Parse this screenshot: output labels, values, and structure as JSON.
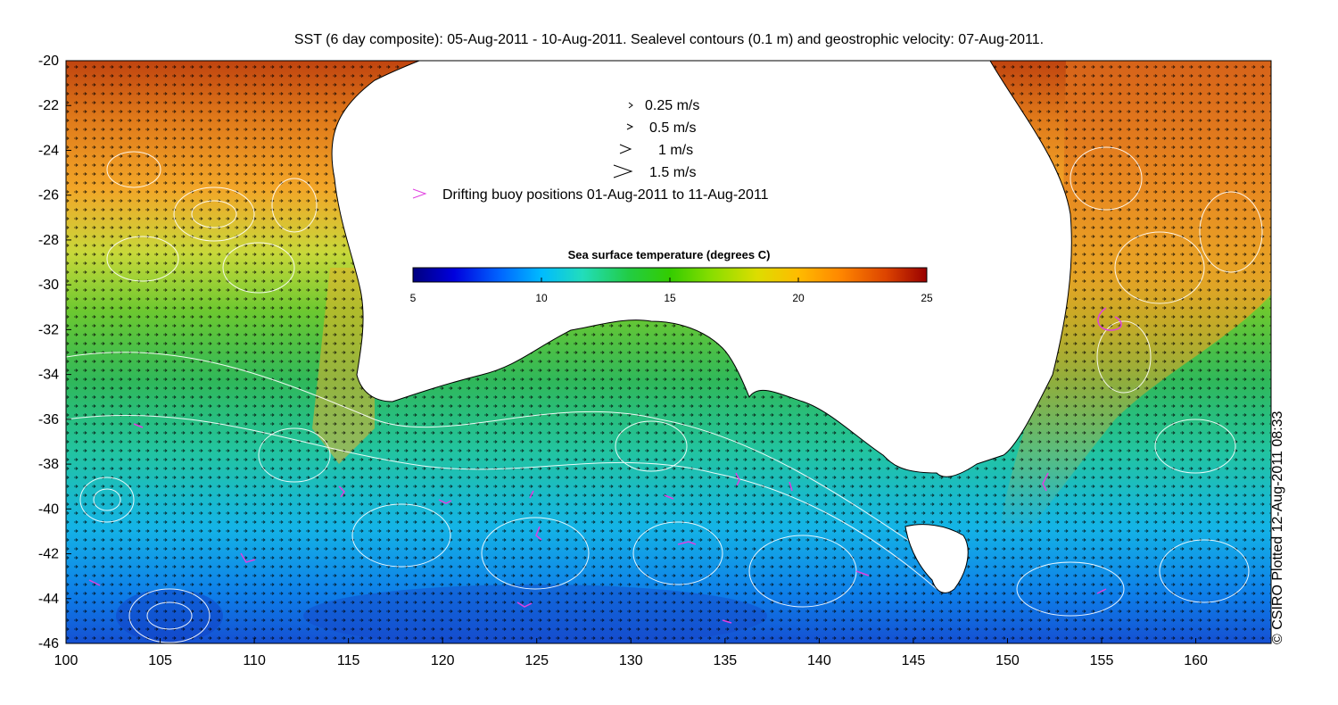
{
  "title": "SST (6 day composite): 05-Aug-2011 - 10-Aug-2011. Sealevel contours (0.1 m) and geostrophic velocity: 07-Aug-2011.",
  "credit": "© CSIRO Plotted 12-Aug-2011 08:33",
  "legend": {
    "velocity_labels": [
      "0.25 m/s",
      "0.5 m/s",
      "1 m/s",
      "1.5 m/s"
    ],
    "velocity_values": [
      0.25,
      0.5,
      1,
      1.5
    ],
    "buoy_label": "Drifting buoy positions 01-Aug-2011 to 11-Aug-2011",
    "buoy_color": "#e040e0"
  },
  "colorbar": {
    "title": "Sea surface temperature (degrees C)",
    "ticks": [
      "5",
      "10",
      "15",
      "20",
      "25"
    ],
    "range": [
      5,
      25
    ],
    "stops": [
      "#00007f",
      "#0000dd",
      "#0066ff",
      "#00bbff",
      "#22ddbb",
      "#22cc44",
      "#33cc00",
      "#88dd00",
      "#dddd00",
      "#ffbb00",
      "#ff8800",
      "#dd4400",
      "#990000"
    ]
  },
  "axes": {
    "x_ticks": [
      "100",
      "105",
      "110",
      "115",
      "120",
      "125",
      "130",
      "135",
      "140",
      "145",
      "150",
      "155",
      "160"
    ],
    "y_ticks": [
      "-20",
      "-22",
      "-24",
      "-26",
      "-28",
      "-30",
      "-32",
      "-34",
      "-36",
      "-38",
      "-40",
      "-42",
      "-44",
      "-46"
    ],
    "lon_range": [
      100,
      164
    ],
    "lat_range": [
      -46,
      -20
    ]
  },
  "colors": {
    "land": "#ffffff",
    "contour": "#ffffff",
    "arrow": "#000000",
    "frame": "#000000"
  }
}
